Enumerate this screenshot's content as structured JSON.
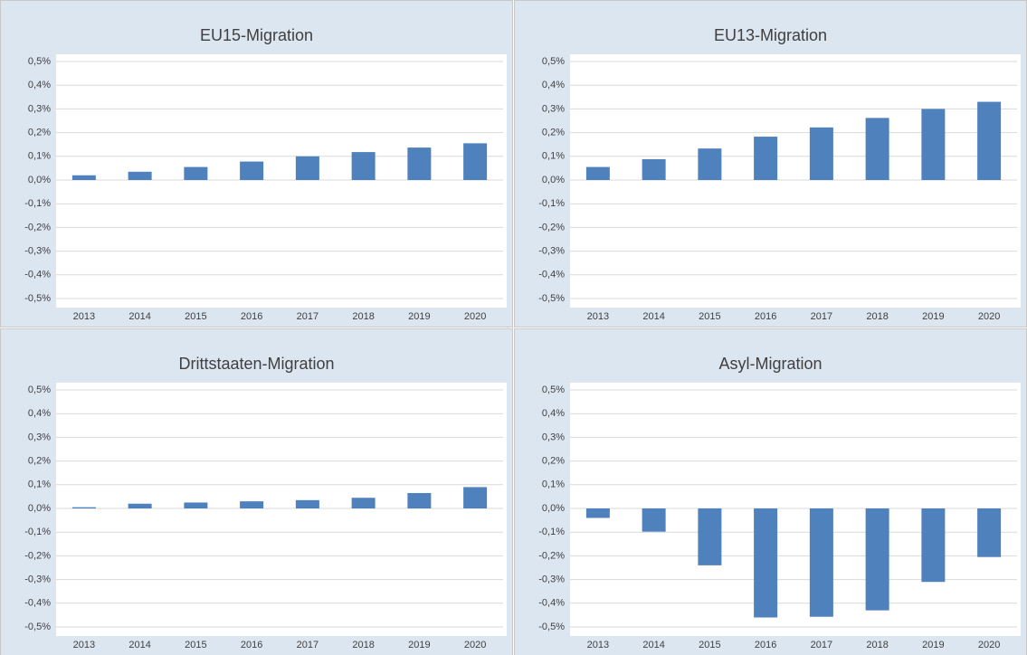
{
  "chart_data": [
    {
      "type": "bar",
      "title": "EU15-Migration",
      "categories": [
        "2013",
        "2014",
        "2015",
        "2016",
        "2017",
        "2018",
        "2019",
        "2020"
      ],
      "values": [
        0.02,
        0.035,
        0.055,
        0.078,
        0.1,
        0.118,
        0.137,
        0.155
      ],
      "color": "#4f81bd",
      "ylim": [
        -0.5,
        0.5
      ],
      "yticks": [
        {
          "value": -0.5,
          "label": "-0,5%"
        },
        {
          "value": -0.4,
          "label": "-0,4%"
        },
        {
          "value": -0.3,
          "label": "-0,3%"
        },
        {
          "value": -0.2,
          "label": "-0,2%"
        },
        {
          "value": -0.1,
          "label": "-0,1%"
        },
        {
          "value": 0,
          "label": "0,0%"
        },
        {
          "value": 0.1,
          "label": "0,1%"
        },
        {
          "value": 0.2,
          "label": "0,2%"
        },
        {
          "value": 0.3,
          "label": "0,3%"
        },
        {
          "value": 0.4,
          "label": "0,4%"
        },
        {
          "value": 0.5,
          "label": "0,5%"
        }
      ],
      "grid": true
    },
    {
      "type": "bar",
      "title": "EU13-Migration",
      "categories": [
        "2013",
        "2014",
        "2015",
        "2016",
        "2017",
        "2018",
        "2019",
        "2020"
      ],
      "values": [
        0.055,
        0.088,
        0.133,
        0.183,
        0.222,
        0.262,
        0.3,
        0.33
      ],
      "color": "#4f81bd",
      "ylim": [
        -0.5,
        0.5
      ],
      "yticks": [
        {
          "value": -0.5,
          "label": "-0,5%"
        },
        {
          "value": -0.4,
          "label": "-0,4%"
        },
        {
          "value": -0.3,
          "label": "-0,3%"
        },
        {
          "value": -0.2,
          "label": "-0,2%"
        },
        {
          "value": -0.1,
          "label": "-0,1%"
        },
        {
          "value": 0,
          "label": "0,0%"
        },
        {
          "value": 0.1,
          "label": "0,1%"
        },
        {
          "value": 0.2,
          "label": "0,2%"
        },
        {
          "value": 0.3,
          "label": "0,3%"
        },
        {
          "value": 0.4,
          "label": "0,4%"
        },
        {
          "value": 0.5,
          "label": "0,5%"
        }
      ],
      "grid": true
    },
    {
      "type": "bar",
      "title": "Drittstaaten-Migration",
      "categories": [
        "2013",
        "2014",
        "2015",
        "2016",
        "2017",
        "2018",
        "2019",
        "2020"
      ],
      "values": [
        0.005,
        0.02,
        0.025,
        0.03,
        0.035,
        0.045,
        0.065,
        0.09
      ],
      "color": "#4f81bd",
      "ylim": [
        -0.5,
        0.5
      ],
      "yticks": [
        {
          "value": -0.5,
          "label": "-0,5%"
        },
        {
          "value": -0.4,
          "label": "-0,4%"
        },
        {
          "value": -0.3,
          "label": "-0,3%"
        },
        {
          "value": -0.2,
          "label": "-0,2%"
        },
        {
          "value": -0.1,
          "label": "-0,1%"
        },
        {
          "value": 0,
          "label": "0,0%"
        },
        {
          "value": 0.1,
          "label": "0,1%"
        },
        {
          "value": 0.2,
          "label": "0,2%"
        },
        {
          "value": 0.3,
          "label": "0,3%"
        },
        {
          "value": 0.4,
          "label": "0,4%"
        },
        {
          "value": 0.5,
          "label": "0,5%"
        }
      ],
      "grid": true
    },
    {
      "type": "bar",
      "title": "Asyl-Migration",
      "categories": [
        "2013",
        "2014",
        "2015",
        "2016",
        "2017",
        "2018",
        "2019",
        "2020"
      ],
      "values": [
        -0.04,
        -0.098,
        -0.24,
        -0.46,
        -0.457,
        -0.43,
        -0.31,
        -0.205
      ],
      "color": "#4f81bd",
      "ylim": [
        -0.5,
        0.5
      ],
      "yticks": [
        {
          "value": -0.5,
          "label": "-0,5%"
        },
        {
          "value": -0.4,
          "label": "-0,4%"
        },
        {
          "value": -0.3,
          "label": "-0,3%"
        },
        {
          "value": -0.2,
          "label": "-0,2%"
        },
        {
          "value": -0.1,
          "label": "-0,1%"
        },
        {
          "value": 0,
          "label": "0,0%"
        },
        {
          "value": 0.1,
          "label": "0,1%"
        },
        {
          "value": 0.2,
          "label": "0,2%"
        },
        {
          "value": 0.3,
          "label": "0,3%"
        },
        {
          "value": 0.4,
          "label": "0,4%"
        },
        {
          "value": 0.5,
          "label": "0,5%"
        }
      ],
      "grid": true
    }
  ]
}
